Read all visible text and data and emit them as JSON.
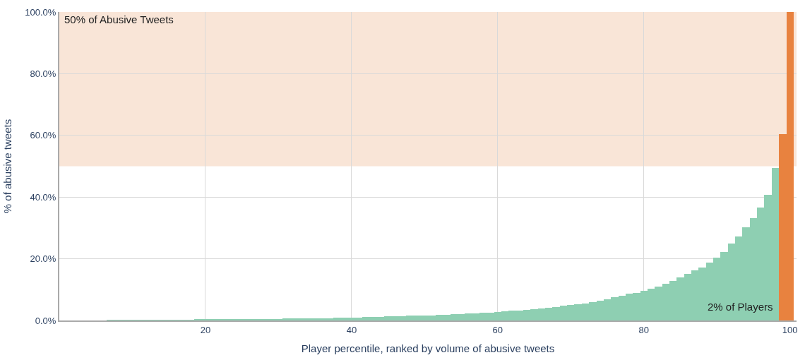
{
  "chart_data": {
    "type": "bar",
    "xlabel": "Player percentile, ranked by volume of abusive tweets",
    "ylabel": "% of abusive tweets",
    "x": [
      1,
      2,
      3,
      4,
      5,
      6,
      7,
      8,
      9,
      10,
      11,
      12,
      13,
      14,
      15,
      16,
      17,
      18,
      19,
      20,
      21,
      22,
      23,
      24,
      25,
      26,
      27,
      28,
      29,
      30,
      31,
      32,
      33,
      34,
      35,
      36,
      37,
      38,
      39,
      40,
      41,
      42,
      43,
      44,
      45,
      46,
      47,
      48,
      49,
      50,
      51,
      52,
      53,
      54,
      55,
      56,
      57,
      58,
      59,
      60,
      61,
      62,
      63,
      64,
      65,
      66,
      67,
      68,
      69,
      70,
      71,
      72,
      73,
      74,
      75,
      76,
      77,
      78,
      79,
      80,
      81,
      82,
      83,
      84,
      85,
      86,
      87,
      88,
      89,
      90,
      91,
      92,
      93,
      94,
      95,
      96,
      97,
      98,
      99,
      100
    ],
    "values": [
      0.0,
      0.0,
      0.0,
      0.0,
      0.0,
      0.0,
      0.1,
      0.1,
      0.1,
      0.1,
      0.1,
      0.1,
      0.2,
      0.2,
      0.2,
      0.2,
      0.2,
      0.2,
      0.3,
      0.3,
      0.3,
      0.3,
      0.4,
      0.4,
      0.4,
      0.4,
      0.5,
      0.5,
      0.5,
      0.5,
      0.6,
      0.6,
      0.7,
      0.7,
      0.7,
      0.8,
      0.8,
      0.9,
      0.9,
      1.0,
      1.0,
      1.1,
      1.2,
      1.2,
      1.3,
      1.3,
      1.4,
      1.5,
      1.6,
      1.7,
      1.7,
      1.8,
      1.9,
      2.0,
      2.1,
      2.3,
      2.4,
      2.5,
      2.6,
      2.8,
      3.0,
      3.1,
      3.3,
      3.5,
      3.7,
      3.9,
      4.1,
      4.4,
      4.7,
      5.0,
      5.3,
      5.6,
      6.0,
      6.4,
      6.9,
      7.5,
      8.1,
      8.6,
      9.0,
      9.7,
      10.3,
      11.0,
      11.9,
      12.9,
      14.0,
      15.1,
      16.2,
      17.2,
      18.7,
      20.3,
      22.3,
      24.9,
      27.3,
      30.1,
      33.2,
      36.6,
      40.8,
      49.4,
      60.3,
      100
    ],
    "colors": [
      "#8ecfb2",
      "#8ecfb2",
      "#8ecfb2",
      "#8ecfb2",
      "#8ecfb2",
      "#8ecfb2",
      "#8ecfb2",
      "#8ecfb2",
      "#8ecfb2",
      "#8ecfb2",
      "#8ecfb2",
      "#8ecfb2",
      "#8ecfb2",
      "#8ecfb2",
      "#8ecfb2",
      "#8ecfb2",
      "#8ecfb2",
      "#8ecfb2",
      "#8ecfb2",
      "#8ecfb2",
      "#8ecfb2",
      "#8ecfb2",
      "#8ecfb2",
      "#8ecfb2",
      "#8ecfb2",
      "#8ecfb2",
      "#8ecfb2",
      "#8ecfb2",
      "#8ecfb2",
      "#8ecfb2",
      "#8ecfb2",
      "#8ecfb2",
      "#8ecfb2",
      "#8ecfb2",
      "#8ecfb2",
      "#8ecfb2",
      "#8ecfb2",
      "#8ecfb2",
      "#8ecfb2",
      "#8ecfb2",
      "#8ecfb2",
      "#8ecfb2",
      "#8ecfb2",
      "#8ecfb2",
      "#8ecfb2",
      "#8ecfb2",
      "#8ecfb2",
      "#8ecfb2",
      "#8ecfb2",
      "#8ecfb2",
      "#8ecfb2",
      "#8ecfb2",
      "#8ecfb2",
      "#8ecfb2",
      "#8ecfb2",
      "#8ecfb2",
      "#8ecfb2",
      "#8ecfb2",
      "#8ecfb2",
      "#8ecfb2",
      "#8ecfb2",
      "#8ecfb2",
      "#8ecfb2",
      "#8ecfb2",
      "#8ecfb2",
      "#8ecfb2",
      "#8ecfb2",
      "#8ecfb2",
      "#8ecfb2",
      "#8ecfb2",
      "#8ecfb2",
      "#8ecfb2",
      "#8ecfb2",
      "#8ecfb2",
      "#8ecfb2",
      "#8ecfb2",
      "#8ecfb2",
      "#8ecfb2",
      "#8ecfb2",
      "#8ecfb2",
      "#8ecfb2",
      "#8ecfb2",
      "#8ecfb2",
      "#8ecfb2",
      "#8ecfb2",
      "#8ecfb2",
      "#8ecfb2",
      "#8ecfb2",
      "#8ecfb2",
      "#8ecfb2",
      "#8ecfb2",
      "#8ecfb2",
      "#8ecfb2",
      "#8ecfb2",
      "#8ecfb2",
      "#8ecfb2",
      "#8ecfb2",
      "#8ecfb2",
      "#e8823f",
      "#e8823f"
    ],
    "xlim": [
      0,
      100.9
    ],
    "ylim": [
      0,
      100
    ],
    "xticks": [
      20,
      40,
      60,
      80,
      100
    ],
    "yticks": [
      {
        "value": 0,
        "label": "0.0%"
      },
      {
        "value": 20,
        "label": "20.0%"
      },
      {
        "value": 40,
        "label": "40.0%"
      },
      {
        "value": 60,
        "label": "60.0%"
      },
      {
        "value": 80,
        "label": "80.0%"
      },
      {
        "value": 100,
        "label": "100.0%"
      }
    ],
    "bands": [
      {
        "axis": "y",
        "from": 50,
        "to": 100,
        "label": "50% of Abusive Tweets",
        "color": "#f8e0d0"
      }
    ],
    "annotations": [
      "2% of Players"
    ],
    "grid": true
  }
}
